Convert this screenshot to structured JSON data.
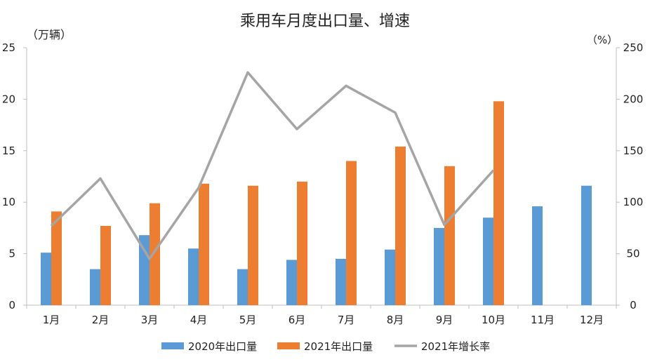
{
  "chart_data": {
    "type": "bar",
    "title": "乘用车月度出口量、增速",
    "ylabel_left": "（万辆）",
    "ylabel_right": "（%）",
    "categories": [
      "1月",
      "2月",
      "3月",
      "4月",
      "5月",
      "6月",
      "7月",
      "8月",
      "9月",
      "10月",
      "11月",
      "12月"
    ],
    "ylim_left": [
      0,
      25
    ],
    "ylim_right": [
      0,
      250
    ],
    "yticks_left": [
      "0",
      "5",
      "10",
      "15",
      "20",
      "25"
    ],
    "yticks_right": [
      "0",
      "50",
      "100",
      "150",
      "200",
      "250"
    ],
    "grid": false,
    "legend_position": "bottom",
    "series": [
      {
        "name": "2020年出口量",
        "type": "bar",
        "axis": "left",
        "color": "#5b9bd5",
        "values": [
          5.1,
          3.5,
          6.8,
          5.5,
          3.5,
          4.4,
          4.5,
          5.4,
          7.5,
          8.5,
          9.6,
          11.6
        ]
      },
      {
        "name": "2021年出口量",
        "type": "bar",
        "axis": "left",
        "color": "#ed7d31",
        "values": [
          9.1,
          7.7,
          9.9,
          11.8,
          11.6,
          12.0,
          14.0,
          15.4,
          13.5,
          19.8,
          null,
          null
        ]
      },
      {
        "name": "2021年增长率",
        "type": "line",
        "axis": "right",
        "color": "#a5a5a5",
        "values": [
          77,
          123,
          45,
          114,
          226,
          171,
          213,
          187,
          78,
          131,
          null,
          null
        ]
      }
    ]
  }
}
